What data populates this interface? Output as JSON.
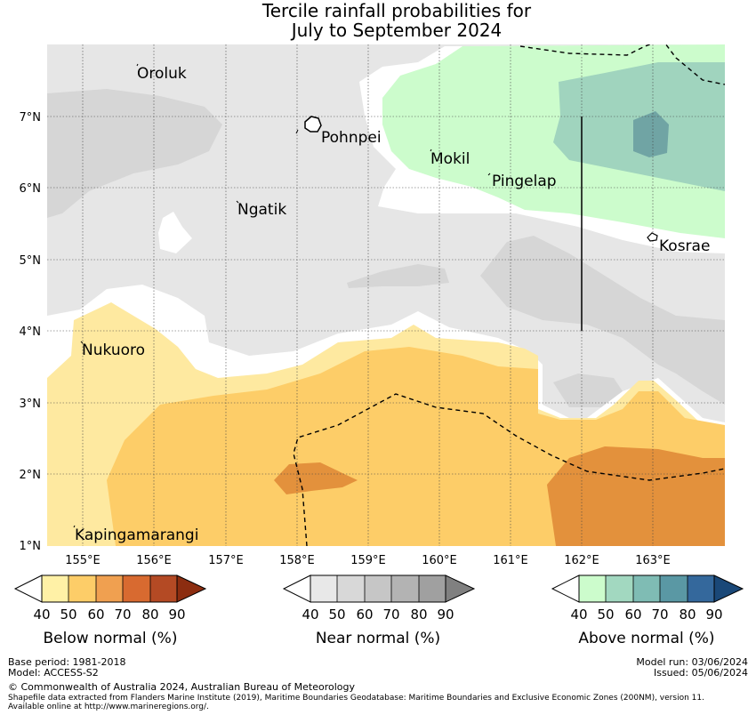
{
  "title": {
    "line1": "Tercile rainfall probabilities for",
    "line2": "July to September 2024"
  },
  "axes": {
    "lon_ticks": [
      "155°E",
      "156°E",
      "157°E",
      "158°E",
      "159°E",
      "160°E",
      "161°E",
      "162°E",
      "163°E"
    ],
    "lat_ticks": [
      "1°N",
      "2°N",
      "3°N",
      "4°N",
      "5°N",
      "6°N",
      "7°N"
    ],
    "lon_range": [
      154.5,
      164.0
    ],
    "lat_range": [
      1.0,
      8.0
    ]
  },
  "places": [
    {
      "name": "Oroluk",
      "lon": 156.2,
      "lat": 7.6
    },
    {
      "name": "Pohnpei",
      "lon": 158.2,
      "lat": 6.9
    },
    {
      "name": "Mokil",
      "lon": 159.9,
      "lat": 6.7
    },
    {
      "name": "Pingelap",
      "lon": 160.7,
      "lat": 6.2
    },
    {
      "name": "Ngatik",
      "lon": 157.3,
      "lat": 5.8
    },
    {
      "name": "Kosrae",
      "lon": 163.0,
      "lat": 5.3
    },
    {
      "name": "Nukuoro",
      "lon": 154.9,
      "lat": 3.9
    },
    {
      "name": "Kapingamarangi",
      "lon": 154.8,
      "lat": 1.1
    }
  ],
  "colorbars": [
    {
      "title": "Below normal (%)",
      "ticks": [
        "40",
        "50",
        "60",
        "70",
        "80",
        "90"
      ],
      "colors": [
        "#fff1a6",
        "#fdcd68",
        "#f0a050",
        "#d86a30",
        "#b44a24",
        "#8c2d10"
      ]
    },
    {
      "title": "Near normal (%)",
      "ticks": [
        "40",
        "50",
        "60",
        "70",
        "80",
        "90"
      ],
      "colors": [
        "#e8e8e8",
        "#d8d8d8",
        "#c6c6c6",
        "#b3b3b3",
        "#a0a0a0",
        "#808080"
      ]
    },
    {
      "title": "Above normal (%)",
      "ticks": [
        "40",
        "50",
        "60",
        "70",
        "80",
        "90"
      ],
      "colors": [
        "#ccfccc",
        "#a2d8c0",
        "#7fbcb4",
        "#5a98a4",
        "#34689c",
        "#1a4878"
      ]
    }
  ],
  "map_colors": {
    "near_40": "#e6e6e6",
    "near_50": "#d6d6d6",
    "above_40": "#ccfccc",
    "above_50": "#a0d4be",
    "above_60": "#70a4a4",
    "below_40": "#fee9a0",
    "below_50": "#fdcd68",
    "below_60": "#e3913c",
    "below_70": "#d77a38"
  },
  "footer": {
    "base_period": "Base period: 1981-2018",
    "model": "Model: ACCESS-S2",
    "copyright": "© Commonwealth of Australia 2024, Australian Bureau of Meteorology",
    "shapefile": "Shapefile data extracted from Flanders Marine Institute (2019), Maritime Boundaries Geodatabase: Maritime Boundaries and Exclusive Economic Zones (200NM), version 11.",
    "available": "Available online at http://www.marineregions.org/.",
    "model_run": "Model run: 03/06/2024",
    "issued": "Issued: 05/06/2024"
  }
}
